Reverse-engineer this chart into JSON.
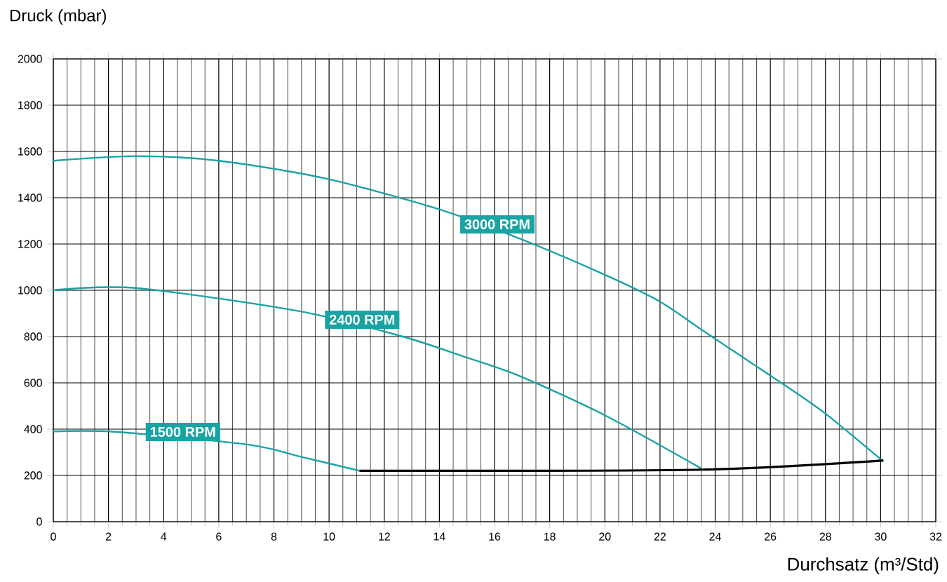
{
  "chart_data": {
    "type": "line",
    "xlabel": "Durchsatz (m³/Std)",
    "ylabel": "Druck (mbar)",
    "xlim": [
      0,
      32
    ],
    "ylim": [
      0,
      2000
    ],
    "xticks": [
      0,
      2,
      4,
      6,
      8,
      10,
      12,
      14,
      16,
      18,
      20,
      22,
      24,
      26,
      28,
      30,
      32
    ],
    "yticks": [
      0,
      200,
      400,
      600,
      800,
      1000,
      1200,
      1400,
      1600,
      1800,
      2000
    ],
    "grid": true,
    "marker": "none",
    "line_style": "solid",
    "series": [
      {
        "color": "#1aa3a3",
        "x": [
          0,
          3,
          6,
          9.8,
          13.8,
          16.9,
          20,
          22,
          23.65,
          26.55,
          28,
          30.1
        ],
        "values": [
          1560,
          1580,
          1560,
          1485,
          1357,
          1224,
          1067,
          951,
          818,
          588,
          467,
          260
        ]
      },
      {
        "color": "#1aa3a3",
        "x": [
          0,
          3,
          8.9,
          12.67,
          14.85,
          16.9,
          20,
          23.5
        ],
        "values": [
          1000,
          1010,
          910,
          800,
          715,
          630,
          460,
          230
        ]
      },
      {
        "color": "#1aa3a3",
        "x": [
          0,
          2.3,
          7.07,
          9,
          11.1
        ],
        "values": [
          390,
          388,
          333,
          280,
          220
        ]
      },
      {
        "color": "#000000",
        "x": [
          11.1,
          23.5,
          30.1
        ],
        "values": [
          220,
          225,
          265
        ]
      }
    ],
    "annotations": [
      {
        "text": "3000 RPM",
        "x": 16.1,
        "y": 1285
      },
      {
        "text": "2400 RPM",
        "x": 11.2,
        "y": 873
      },
      {
        "text": "1500 RPM",
        "x": 4.7,
        "y": 388
      }
    ]
  }
}
